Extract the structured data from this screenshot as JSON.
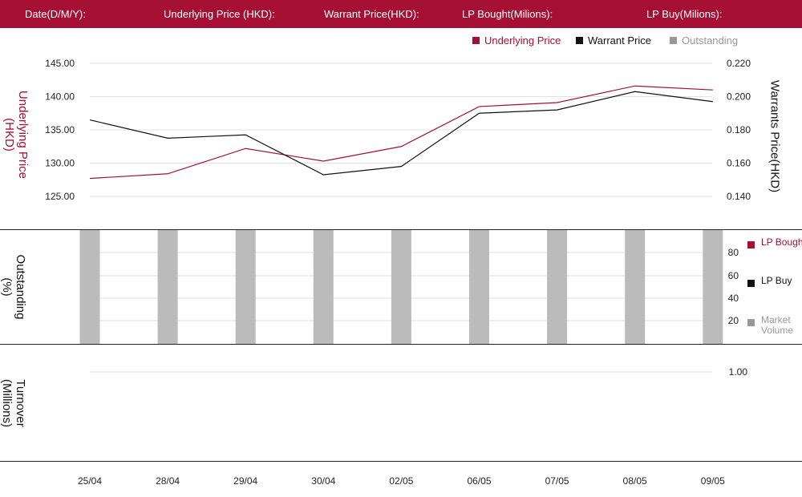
{
  "header": {
    "date_label": "Date(D/M/Y):",
    "underlying_label": "Underlying Price (HKD):",
    "warrant_label": "Warrant  Price(HKD):",
    "lp_bought_label": "LP Bought(Milions):",
    "lp_buy_label": "LP Buy(Milions):"
  },
  "colors": {
    "brand": "#a50f33",
    "warrant": "#111111",
    "outstanding": "#bbbbbb",
    "grid": "#e2e2e2"
  },
  "legend": {
    "underlying": "Underlying Price",
    "warrant": "Warrant  Price",
    "outstanding": "Outstanding"
  },
  "right_legend": {
    "lp_bought": "LP Bought",
    "lp_buy": "LP Buy",
    "market_volume": "Market Volume"
  },
  "axis_titles": {
    "underlying": "Underlying Price (HKD)",
    "warrant": "Warrants  Price(HKD)",
    "outstanding": "Outstanding (%)",
    "turnover": "Turnover (Millions)"
  },
  "chart_data": [
    {
      "type": "line",
      "categories": [
        "25/04",
        "28/04",
        "29/04",
        "30/04",
        "02/05",
        "06/05",
        "07/05",
        "08/05",
        "09/05"
      ],
      "series": [
        {
          "name": "Underlying Price",
          "axis": "left",
          "values": [
            127.7,
            128.4,
            132.2,
            130.3,
            132.5,
            138.5,
            139.1,
            141.6,
            141.0
          ]
        },
        {
          "name": "Warrant  Price",
          "axis": "right",
          "values": [
            0.186,
            0.175,
            0.177,
            0.153,
            0.158,
            0.19,
            0.192,
            0.203,
            0.197
          ]
        }
      ],
      "ylabel": "Underlying Price (HKD)",
      "y2label": "Warrants  Price(HKD)",
      "ylim": [
        125,
        145
      ],
      "y_ticks": [
        "125.00",
        "130.00",
        "135.00",
        "140.00",
        "145.00"
      ],
      "y2lim": [
        0.14,
        0.22
      ],
      "y2_ticks": [
        "0.140",
        "0.160",
        "0.180",
        "0.200",
        "0.220"
      ],
      "legend": "top-right",
      "grid": true
    },
    {
      "type": "bar",
      "categories": [
        "25/04",
        "28/04",
        "29/04",
        "30/04",
        "02/05",
        "06/05",
        "07/05",
        "08/05",
        "09/05"
      ],
      "series": [
        {
          "name": "Outstanding",
          "values": [
            100,
            100,
            100,
            100,
            100,
            100,
            100,
            100,
            100
          ]
        }
      ],
      "ylabel": "Outstanding (%)",
      "ylim": [
        0,
        100
      ],
      "y_ticks": [
        "20",
        "40",
        "60",
        "80"
      ],
      "legend": "right",
      "grid": true
    },
    {
      "type": "bar",
      "categories": [
        "25/04",
        "28/04",
        "29/04",
        "30/04",
        "02/05",
        "06/05",
        "07/05",
        "08/05",
        "09/05"
      ],
      "series": [],
      "ylabel": "Turnover (Millions)",
      "ylim": [
        0,
        1
      ],
      "y_ticks": [
        "1.00"
      ],
      "grid": true
    }
  ]
}
